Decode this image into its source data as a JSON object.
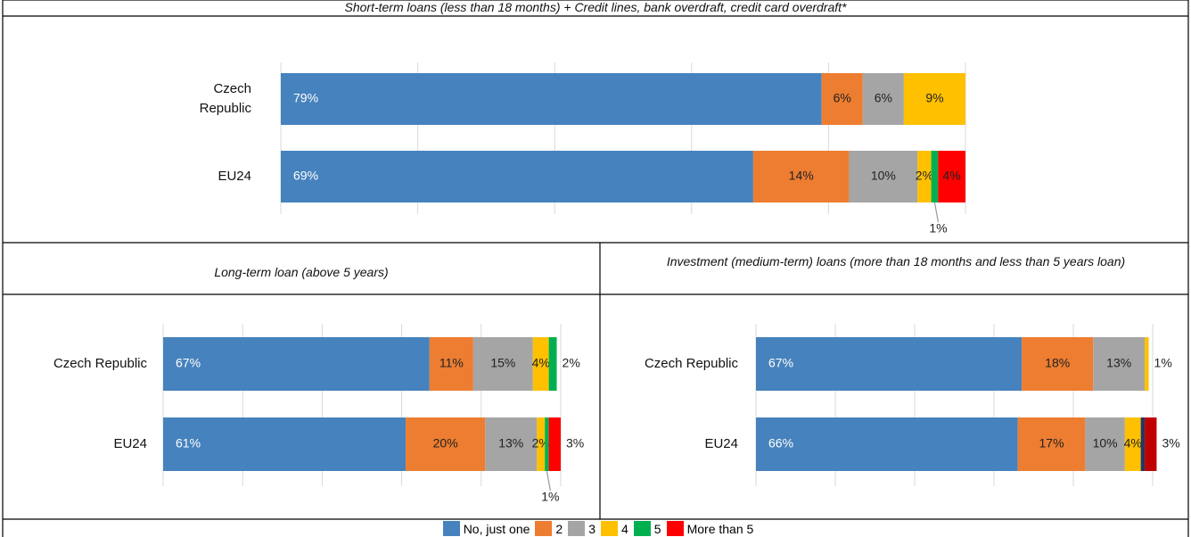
{
  "chart_data": [
    {
      "type": "bar",
      "orientation": "horizontal",
      "stacked": true,
      "title": "Short-term loans (less than 18 months) + Credit lines, bank overdraft, credit card overdraft*",
      "categories": [
        "Czech Republic",
        "EU24"
      ],
      "xlim": [
        0,
        100
      ],
      "xticks": [
        0,
        20,
        40,
        60,
        80,
        100
      ],
      "series": [
        {
          "name": "No, just one",
          "color": "#4682bd",
          "values": [
            79,
            69
          ],
          "value_labels": [
            "79%",
            "69%"
          ]
        },
        {
          "name": "2",
          "color": "#ed7d31",
          "values": [
            6,
            14
          ],
          "value_labels": [
            "6%",
            "14%"
          ]
        },
        {
          "name": "3",
          "color": "#a5a5a5",
          "values": [
            6,
            10
          ],
          "value_labels": [
            "6%",
            "10%"
          ]
        },
        {
          "name": "4",
          "color": "#ffc000",
          "values": [
            9,
            2
          ],
          "value_labels": [
            "9%",
            "2%"
          ]
        },
        {
          "name": "5",
          "color": "#00b050",
          "values": [
            0,
            1
          ],
          "value_labels": [
            null,
            "1%"
          ]
        },
        {
          "name": "More than 5",
          "color": "#ff0000",
          "values": [
            0,
            4
          ],
          "value_labels": [
            null,
            "4%"
          ]
        }
      ]
    },
    {
      "type": "bar",
      "orientation": "horizontal",
      "stacked": true,
      "title": "Long-term loan (above 5 years)",
      "categories": [
        "Czech Republic",
        "EU24"
      ],
      "xlim": [
        0,
        100
      ],
      "xticks": [
        0,
        20,
        40,
        60,
        80,
        100
      ],
      "series": [
        {
          "color": "#4682bd",
          "values": [
            67,
            61
          ],
          "value_labels": [
            "67%",
            "61%"
          ]
        },
        {
          "color": "#ed7d31",
          "values": [
            11,
            20
          ],
          "value_labels": [
            "11%",
            "20%"
          ]
        },
        {
          "color": "#a5a5a5",
          "values": [
            15,
            13
          ],
          "value_labels": [
            "15%",
            "13%"
          ]
        },
        {
          "color": "#ffc000",
          "values": [
            4,
            2
          ],
          "value_labels": [
            "4%",
            "2%"
          ]
        },
        {
          "color": "#00b050",
          "values": [
            2,
            1
          ],
          "value_labels": [
            "2%",
            "1%"
          ]
        },
        {
          "color": "#ff0000",
          "values": [
            0,
            3
          ],
          "value_labels": [
            null,
            "3%"
          ]
        }
      ]
    },
    {
      "type": "bar",
      "orientation": "horizontal",
      "stacked": true,
      "title": "Investment (medium-term) loans (more than 18 months and less than 5 years loan)",
      "categories": [
        "Czech Republic",
        "EU24"
      ],
      "xlim": [
        0,
        100
      ],
      "xticks": [
        0,
        20,
        40,
        60,
        80,
        100
      ],
      "series": [
        {
          "color": "#4682bd",
          "values": [
            67,
            66
          ],
          "value_labels": [
            "67%",
            "66%"
          ]
        },
        {
          "color": "#ed7d31",
          "values": [
            18,
            17
          ],
          "value_labels": [
            "18%",
            "17%"
          ]
        },
        {
          "color": "#a5a5a5",
          "values": [
            13,
            10
          ],
          "value_labels": [
            "13%",
            "10%"
          ]
        },
        {
          "color": "#ffc000",
          "values": [
            1,
            4
          ],
          "value_labels": [
            "1%",
            "4%"
          ]
        },
        {
          "color": "#203864",
          "values": [
            0,
            1
          ],
          "value_labels": [
            null,
            null
          ]
        },
        {
          "color": "#c00000",
          "values": [
            0,
            3
          ],
          "value_labels": [
            null,
            "3%"
          ]
        }
      ]
    }
  ]
}
